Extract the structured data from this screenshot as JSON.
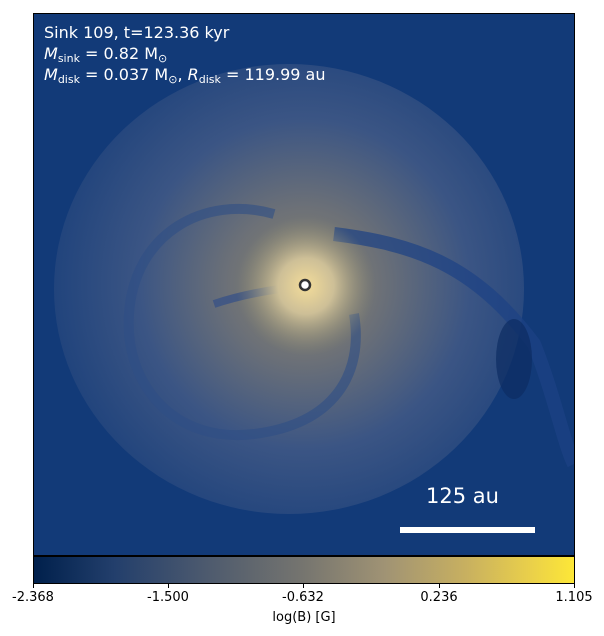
{
  "annotation": {
    "line1": "Sink 109, t=123.36 kyr",
    "msink_symbol": "M",
    "msink_sub": "sink",
    "msink_value": " = 0.82 M",
    "msink_unit_sub": "⊙",
    "mdisk_symbol": "M",
    "mdisk_sub": "disk",
    "mdisk_value": " = 0.037 M",
    "mdisk_unit_sub": "⊙",
    "rdisk_sep": ", ",
    "rdisk_symbol": "R",
    "rdisk_sub": "disk",
    "rdisk_value": " = 119.99 au"
  },
  "scalebar": {
    "label": "125 au"
  },
  "colorbar": {
    "label": "log(B) [G]",
    "ticks": [
      "-2.368",
      "-1.500",
      "-0.632",
      "0.236",
      "1.105"
    ],
    "colors": [
      "#00204c",
      "#4d5a6e",
      "#76756f",
      "#c8b060",
      "#fde737"
    ]
  }
}
